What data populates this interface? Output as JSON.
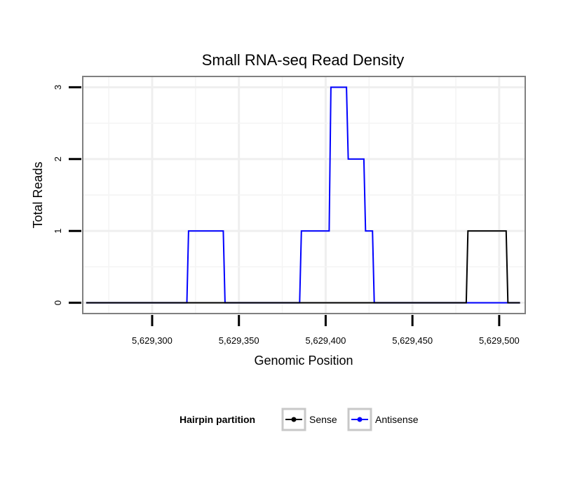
{
  "chart_data": {
    "type": "line",
    "title": "Small RNA-seq Read Density",
    "xlabel": "Genomic Position",
    "ylabel": "Total Reads",
    "xlim": [
      5629260,
      5629515
    ],
    "ylim": [
      -0.15,
      3.15
    ],
    "x_ticks": [
      5629300,
      5629350,
      5629400,
      5629450,
      5629500
    ],
    "x_tick_labels": [
      "5,629,300",
      "5,629,350",
      "5,629,400",
      "5,629,450",
      "5,629,500"
    ],
    "y_ticks": [
      0,
      1,
      2,
      3
    ],
    "y_tick_labels": [
      "0",
      "1",
      "2",
      "3"
    ],
    "grid": true,
    "legend": {
      "title": "Hairpin partition",
      "position": "bottom",
      "entries": [
        "Sense",
        "Antisense"
      ]
    },
    "series": [
      {
        "name": "Antisense",
        "color": "#0000ff",
        "x": [
          5629262,
          5629320,
          5629321,
          5629341,
          5629342,
          5629385,
          5629386,
          5629402,
          5629403,
          5629412,
          5629413,
          5629422,
          5629423,
          5629427,
          5629428,
          5629512
        ],
        "y": [
          0,
          0,
          1,
          1,
          0,
          0,
          1,
          1,
          3,
          3,
          2,
          2,
          1,
          1,
          0,
          0
        ]
      },
      {
        "name": "Sense",
        "color": "#000000",
        "x": [
          5629262,
          5629481,
          5629482,
          5629504,
          5629505,
          5629512
        ],
        "y": [
          0,
          0,
          1,
          1,
          0,
          0
        ]
      }
    ]
  }
}
